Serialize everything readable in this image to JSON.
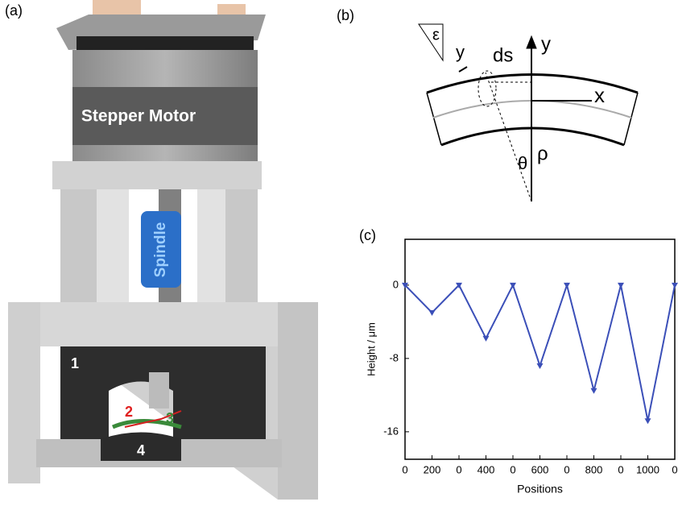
{
  "panel_a": {
    "label": "(a)",
    "motor": "Stepper Motor",
    "spindle": "Spindle",
    "parts": [
      "1",
      "2",
      "3",
      "4"
    ]
  },
  "panel_b": {
    "label": "(b)",
    "epsilon": "ε",
    "y_small": "y",
    "ds": "ds",
    "y_axis": "y",
    "x_axis": "x",
    "theta": "θ",
    "rho": "ρ"
  },
  "panel_c": {
    "label": "(c)"
  },
  "chart_data": {
    "type": "line",
    "x_label": "Positions",
    "y_label": "Height / μm",
    "categories": [
      "0",
      "200",
      "0",
      "400",
      "0",
      "600",
      "0",
      "800",
      "0",
      "1000",
      "0"
    ],
    "series": [
      {
        "color": "#3b4fb8",
        "values": [
          0,
          -3,
          0,
          -5.8,
          0,
          -8.8,
          0,
          -11.5,
          0,
          -14.8,
          0
        ]
      }
    ],
    "ylim": [
      -19,
      5
    ],
    "yticks": [
      0,
      -8,
      -16
    ]
  }
}
